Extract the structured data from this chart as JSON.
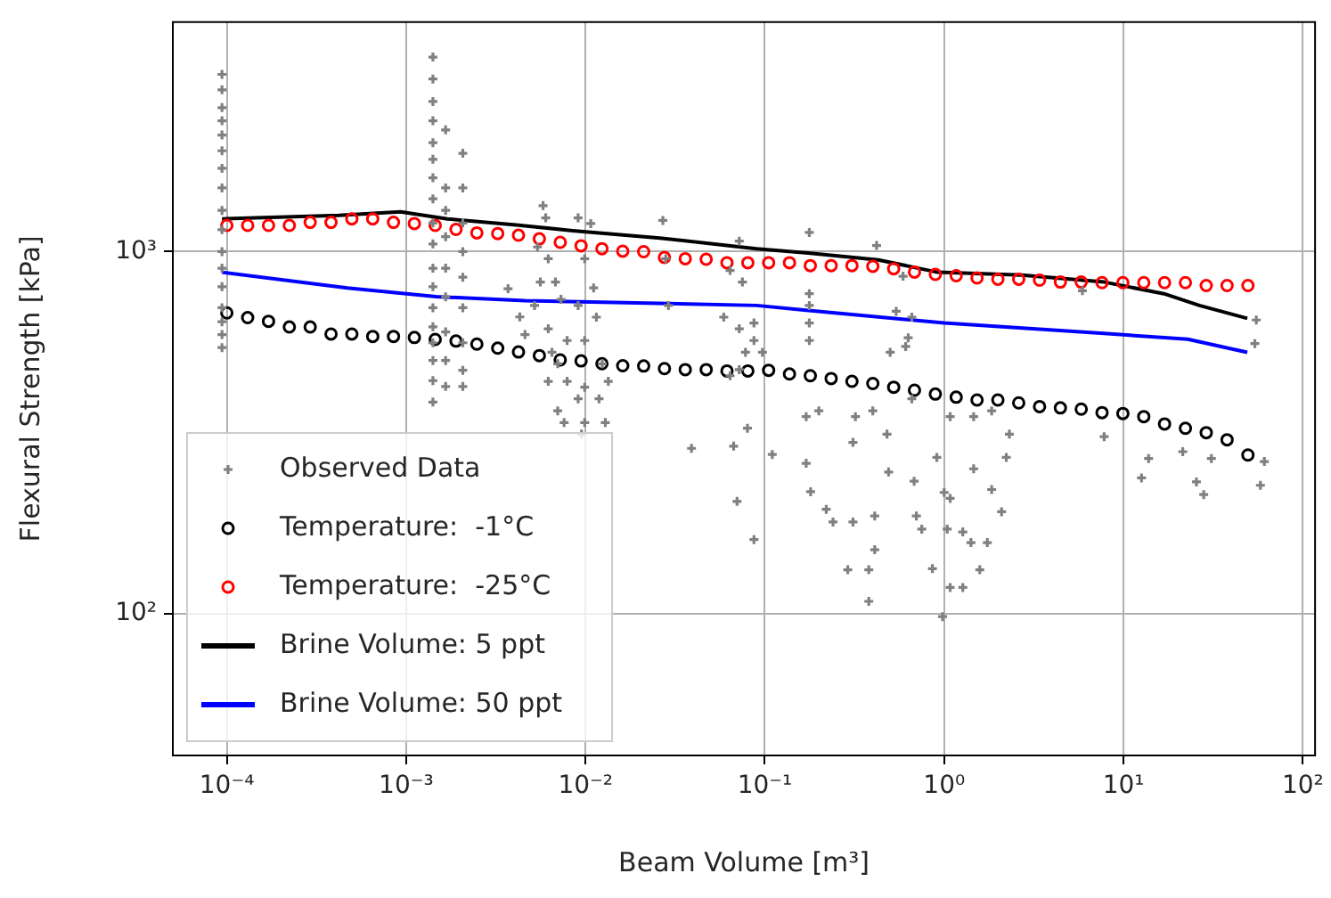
{
  "chart_data": {
    "type": "scatter",
    "xlabel": "Beam Volume [m³]",
    "ylabel": "Flexural Strength [kPa]",
    "log": "xy",
    "grid": true,
    "legend": "bottom left",
    "xlim": [
      5e-05,
      117
    ],
    "ylim": [
      40.5,
      4310
    ],
    "xticks": [
      {
        "value": 0.0001,
        "label": "10⁻⁴"
      },
      {
        "value": 0.001,
        "label": "10⁻³"
      },
      {
        "value": 0.01,
        "label": "10⁻²"
      },
      {
        "value": 0.1,
        "label": "10⁻¹"
      },
      {
        "value": 1,
        "label": "10⁰"
      },
      {
        "value": 10,
        "label": "10¹"
      },
      {
        "value": 100,
        "label": "10²"
      }
    ],
    "yticks": [
      {
        "value": 100,
        "label": "10²"
      },
      {
        "value": 1000,
        "label": "10³"
      }
    ],
    "series": [
      {
        "name": "Observed Data",
        "type": "scatter",
        "marker": "cross",
        "color": "#808080",
        "x": [
          9.4e-05,
          9.4e-05,
          9.4e-05,
          9.4e-05,
          9.4e-05,
          9.4e-05,
          9.4e-05,
          9.4e-05,
          9.4e-05,
          9.4e-05,
          9.4e-05,
          9.4e-05,
          9.4e-05,
          9.4e-05,
          9.4e-05,
          9.4e-05,
          9.4e-05,
          0.00141,
          0.00141,
          0.00141,
          0.00141,
          0.00141,
          0.00141,
          0.00141,
          0.00141,
          0.00141,
          0.00141,
          0.00141,
          0.00141,
          0.00141,
          0.00141,
          0.00141,
          0.00141,
          0.00141,
          0.00141,
          0.00166,
          0.00166,
          0.00166,
          0.00166,
          0.00166,
          0.00166,
          0.00166,
          0.00166,
          0.00166,
          0.00207,
          0.00207,
          0.00207,
          0.00207,
          0.00207,
          0.00207,
          0.00207,
          0.00207,
          0.00207,
          0.0037,
          0.0043,
          0.0058,
          0.006,
          0.0054,
          0.0062,
          0.0056,
          0.0068,
          0.0073,
          0.0052,
          0.0062,
          0.0046,
          0.0079,
          0.0065,
          0.007,
          0.0062,
          0.0079,
          0.007,
          0.0076,
          0.0091,
          0.0107,
          0.0099,
          0.0111,
          0.0091,
          0.0115,
          0.0099,
          0.0124,
          0.0099,
          0.0134,
          0.0091,
          0.0119,
          0.0099,
          0.0129,
          0.0095,
          0.027,
          0.028,
          0.029,
          0.059,
          0.072,
          0.072,
          0.064,
          0.075,
          0.078,
          0.072,
          0.064,
          0.087,
          0.177,
          0.177,
          0.177,
          0.177,
          0.177,
          0.42,
          0.54,
          0.61,
          0.5,
          0.63,
          0.59,
          0.66,
          0.087,
          0.097,
          0.17,
          0.2,
          0.32,
          0.4,
          0.48,
          0.66,
          1.08,
          1.46,
          1.84,
          2.31,
          7.8,
          5.9,
          55,
          54,
          0.039,
          0.067,
          0.08,
          0.07,
          0.087,
          0.11,
          0.17,
          0.18,
          0.22,
          0.24,
          0.31,
          0.31,
          0.29,
          0.38,
          0.38,
          0.41,
          0.41,
          0.49,
          0.68,
          0.7,
          0.75,
          0.86,
          0.91,
          0.98,
          1.0,
          1.08,
          1.08,
          1.04,
          1.27,
          1.27,
          1.41,
          1.46,
          1.58,
          1.74,
          1.84,
          2.09,
          2.22,
          12.6,
          13.8,
          21.4,
          25.5,
          28,
          30.9,
          61,
          58
        ],
        "values": [
          3090,
          2800,
          2500,
          2300,
          2100,
          1900,
          1700,
          1500,
          1300,
          1150,
          1000,
          900,
          800,
          700,
          640,
          590,
          543,
          3450,
          3000,
          2600,
          2300,
          2000,
          1800,
          1600,
          1400,
          1200,
          1050,
          900,
          800,
          700,
          620,
          560,
          500,
          440,
          384,
          2170,
          1500,
          1300,
          1100,
          900,
          750,
          600,
          500,
          424,
          1870,
          1500,
          1200,
          1000,
          850,
          700,
          560,
          470,
          424,
          790,
          660,
          1340,
          1240,
          1030,
          956,
          824,
          824,
          738,
          710,
          612,
          590,
          568,
          527,
          490,
          438,
          438,
          363,
          337,
          1240,
          1196,
          956,
          794,
          710,
          659,
          568,
          490,
          422,
          438,
          392,
          392,
          337,
          337,
          313,
          1220,
          956,
          710,
          659,
          612,
          1069,
          887,
          824,
          527,
          472,
          454,
          568,
          1130,
          765,
          710,
          635,
          568,
          1040,
          684,
          547,
          527,
          578,
          855,
          659,
          635,
          527,
          350,
          363,
          350,
          363,
          313,
          392,
          350,
          350,
          363,
          313,
          308,
          780,
          647,
          557,
          286,
          290,
          325,
          204,
          160,
          275,
          260,
          217,
          194,
          179,
          297,
          179,
          132,
          132,
          108,
          186,
          150,
          246,
          232,
          186,
          171,
          133,
          270,
          98,
          216,
          208,
          118,
          171,
          118,
          168,
          157,
          251,
          132,
          157,
          220,
          191,
          270,
          237,
          268,
          280,
          231,
          213,
          268,
          263,
          226
        ]
      },
      {
        "name": "Temperature:  -1°C",
        "type": "scatter",
        "marker": "circle",
        "color": "#000000",
        "x": [
          0.0001,
          0.0001307,
          0.0001708,
          0.0002232,
          0.0002917,
          0.0003811,
          0.000498,
          0.000651,
          0.00085,
          0.001111,
          0.001452,
          0.001897,
          0.002479,
          0.00324,
          0.00423,
          0.00553,
          0.00723,
          0.00945,
          0.01235,
          0.01613,
          0.0211,
          0.02756,
          0.036,
          0.0471,
          0.0615,
          0.0804,
          0.105,
          0.1372,
          0.1793,
          0.2343,
          0.306,
          0.4,
          0.523,
          0.683,
          0.893,
          1.167,
          1.525,
          1.993,
          2.604,
          3.403,
          4.446,
          5.81,
          7.59,
          9.92,
          12.97,
          16.94,
          22.14,
          28.93,
          37.8,
          49.4
        ],
        "values": [
          677,
          657,
          642,
          619,
          619,
          592,
          592,
          583,
          583,
          579,
          572,
          566,
          555,
          541,
          528,
          516,
          502,
          499,
          490,
          484,
          483,
          475,
          472,
          472,
          468,
          468,
          470,
          459,
          454,
          446,
          438,
          432,
          422,
          414,
          404,
          396,
          389,
          389,
          382,
          373,
          370,
          367,
          359,
          357,
          350,
          334,
          325,
          316,
          302,
          274
        ]
      },
      {
        "name": "Temperature:  -25°C",
        "type": "scatter",
        "marker": "circle",
        "color": "#ff0000",
        "x": [
          0.0001,
          0.0001307,
          0.0001708,
          0.0002232,
          0.0002917,
          0.0003811,
          0.000498,
          0.000651,
          0.00085,
          0.001111,
          0.001452,
          0.001897,
          0.002479,
          0.00324,
          0.00423,
          0.00553,
          0.00723,
          0.00945,
          0.01235,
          0.01613,
          0.0211,
          0.02756,
          0.036,
          0.0471,
          0.0615,
          0.0804,
          0.105,
          0.1372,
          0.1793,
          0.2343,
          0.306,
          0.4,
          0.523,
          0.683,
          0.893,
          1.167,
          1.525,
          1.993,
          2.604,
          3.403,
          4.446,
          5.81,
          7.59,
          9.92,
          12.97,
          16.94,
          22.14,
          28.93,
          37.8,
          49.4
        ],
        "values": [
          1182,
          1182,
          1182,
          1182,
          1205,
          1205,
          1232,
          1232,
          1205,
          1196,
          1182,
          1152,
          1127,
          1122,
          1110,
          1085,
          1061,
          1038,
          1019,
          1003,
          1000,
          964,
          956,
          953,
          932,
          932,
          932,
          932,
          915,
          915,
          915,
          911,
          897,
          878,
          865,
          858,
          846,
          839,
          839,
          834,
          824,
          824,
          821,
          821,
          821,
          821,
          821,
          806,
          806,
          806
        ]
      },
      {
        "name": "Brine Volume: 5 ppt",
        "type": "line",
        "marker": "none",
        "line_style": "solid",
        "color": "#000000",
        "x": [
          9.4e-05,
          0.00042,
          0.00093,
          0.0017,
          0.0041,
          0.0085,
          0.026,
          0.09,
          0.174,
          0.43,
          0.92,
          2.7,
          7.8,
          16.8,
          26.5,
          49
        ],
        "values": [
          1232,
          1260,
          1289,
          1232,
          1186,
          1143,
          1090,
          1019,
          992,
          949,
          877,
          862,
          824,
          765,
          710,
          654
        ]
      },
      {
        "name": "Brine Volume: 50 ppt",
        "type": "line",
        "marker": "none",
        "line_style": "solid",
        "color": "#0000ff",
        "x": [
          9.4e-05,
          0.00047,
          0.00147,
          0.0046,
          0.09,
          0.17,
          1.0,
          7.8,
          22.8,
          49
        ],
        "values": [
          877,
          794,
          751,
          732,
          710,
          689,
          635,
          594,
          573,
          527
        ]
      }
    ]
  }
}
